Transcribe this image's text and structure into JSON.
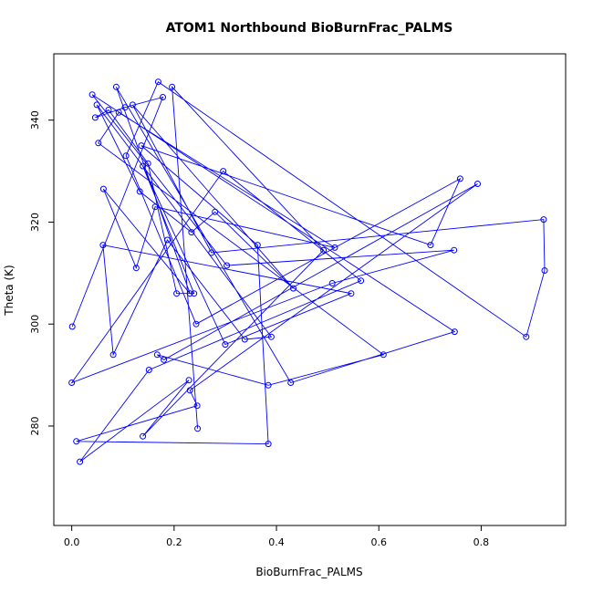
{
  "chart_data": {
    "type": "line",
    "title": "ATOM1 Northbound BioBurnFrac_PALMS",
    "xlabel": "BioBurnFrac_PALMS",
    "ylabel": "Theta (K)",
    "xlim": [
      -0.035,
      0.965
    ],
    "ylim": [
      260.5,
      353
    ],
    "x_ticks": [
      0.0,
      0.2,
      0.4,
      0.6,
      0.8
    ],
    "y_ticks": [
      280,
      300,
      320,
      340
    ],
    "x_tick_labels": [
      "0.0",
      "0.2",
      "0.4",
      "0.6",
      "0.8"
    ],
    "y_tick_labels": [
      "280",
      "300",
      "320",
      "340"
    ],
    "grid": false,
    "series": [
      {
        "color": "#0000ff",
        "marker": "open-circle",
        "x": [
          0.001,
          0.178,
          0.104,
          0.046,
          0.072,
          0.149,
          0.205,
          0.239,
          0.139,
          0.3,
          0.546,
          0.061,
          0.081,
          0.187,
          0.338,
          0.39,
          0.049,
          0.133,
          0.234,
          0.28,
          0.433,
          0.119,
          0.273,
          0.922,
          0.924,
          0.888,
          0.169,
          0.106,
          0.243,
          0.759,
          0.701,
          0.136,
          0.363,
          0.384,
          0.009,
          0.245,
          0.231,
          0.793,
          0.18,
          0.167,
          0.384,
          0.609,
          0.052,
          0.092,
          0.514,
          0.163,
          0.126,
          0.062,
          0.231,
          0.087,
          0.428,
          0.748,
          0.04,
          0.303,
          0.747,
          0.509,
          0.0,
          0.296,
          0.565,
          0.151,
          0.016,
          0.229,
          0.139,
          0.492,
          0.196,
          0.246
        ],
        "y": [
          299.5,
          344.5,
          342.5,
          340.5,
          342,
          331.5,
          306,
          306,
          331,
          296,
          306,
          315.5,
          294,
          316.5,
          297,
          297.5,
          343,
          326,
          318,
          322,
          307,
          343,
          314,
          320.5,
          310.5,
          297.5,
          347.5,
          333,
          300,
          328.5,
          315.5,
          335,
          315.5,
          276.5,
          277,
          284,
          287,
          327.5,
          293,
          294,
          288,
          294,
          335.5,
          341.5,
          315,
          323,
          311,
          326.5,
          306,
          346.5,
          288.5,
          298.5,
          345,
          311.5,
          314.5,
          308,
          288.5,
          330,
          308.5,
          291,
          273,
          289,
          278,
          314.5,
          346.5,
          279.5
        ]
      }
    ]
  }
}
